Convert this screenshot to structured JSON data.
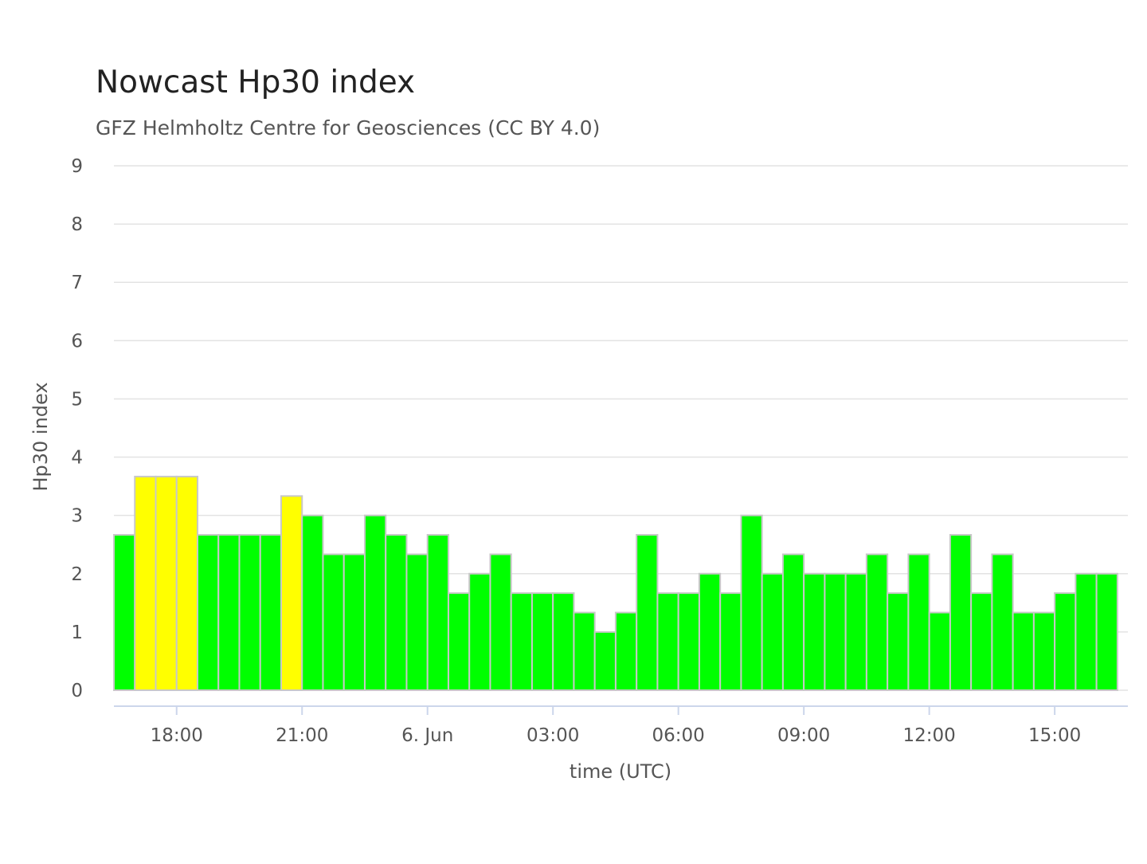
{
  "colors": {
    "low": "#00ff00",
    "elevated": "#ffff00",
    "grid": "#e3e3e3",
    "axis": "#ccd6eb",
    "title": "#222222",
    "text": "#555555"
  },
  "chart_data": {
    "type": "bar",
    "title": "Nowcast Hp30 index",
    "subtitle": "GFZ Helmholtz Centre for Geosciences (CC BY 4.0)",
    "xlabel": "time (UTC)",
    "ylabel": "Hp30 index",
    "ylim": [
      0,
      9
    ],
    "yticks": [
      "0",
      "1",
      "2",
      "3",
      "4",
      "5",
      "6",
      "7",
      "8",
      "9"
    ],
    "xlim": [
      "2025-06-05T16:30:00Z",
      "2025-06-06T16:45:00Z"
    ],
    "bar_interval_minutes": 30,
    "xticks": [
      {
        "t": "2025-06-05T18:00:00Z",
        "label": "18:00"
      },
      {
        "t": "2025-06-05T21:00:00Z",
        "label": "21:00"
      },
      {
        "t": "2025-06-06T00:00:00Z",
        "label": "6. Jun"
      },
      {
        "t": "2025-06-06T03:00:00Z",
        "label": "03:00"
      },
      {
        "t": "2025-06-06T06:00:00Z",
        "label": "06:00"
      },
      {
        "t": "2025-06-06T09:00:00Z",
        "label": "09:00"
      },
      {
        "t": "2025-06-06T12:00:00Z",
        "label": "12:00"
      },
      {
        "t": "2025-06-06T15:00:00Z",
        "label": "15:00"
      }
    ],
    "grid": true,
    "legend": "none",
    "x": [
      "2025-06-05T16:30:00Z",
      "2025-06-05T17:00:00Z",
      "2025-06-05T17:30:00Z",
      "2025-06-05T18:00:00Z",
      "2025-06-05T18:30:00Z",
      "2025-06-05T19:00:00Z",
      "2025-06-05T19:30:00Z",
      "2025-06-05T20:00:00Z",
      "2025-06-05T20:30:00Z",
      "2025-06-05T21:00:00Z",
      "2025-06-05T21:30:00Z",
      "2025-06-05T22:00:00Z",
      "2025-06-05T22:30:00Z",
      "2025-06-05T23:00:00Z",
      "2025-06-05T23:30:00Z",
      "2025-06-06T00:00:00Z",
      "2025-06-06T00:30:00Z",
      "2025-06-06T01:00:00Z",
      "2025-06-06T01:30:00Z",
      "2025-06-06T02:00:00Z",
      "2025-06-06T02:30:00Z",
      "2025-06-06T03:00:00Z",
      "2025-06-06T03:30:00Z",
      "2025-06-06T04:00:00Z",
      "2025-06-06T04:30:00Z",
      "2025-06-06T05:00:00Z",
      "2025-06-06T05:30:00Z",
      "2025-06-06T06:00:00Z",
      "2025-06-06T06:30:00Z",
      "2025-06-06T07:00:00Z",
      "2025-06-06T07:30:00Z",
      "2025-06-06T08:00:00Z",
      "2025-06-06T08:30:00Z",
      "2025-06-06T09:00:00Z",
      "2025-06-06T09:30:00Z",
      "2025-06-06T10:00:00Z",
      "2025-06-06T10:30:00Z",
      "2025-06-06T11:00:00Z",
      "2025-06-06T11:30:00Z",
      "2025-06-06T12:00:00Z",
      "2025-06-06T12:30:00Z",
      "2025-06-06T13:00:00Z",
      "2025-06-06T13:30:00Z",
      "2025-06-06T14:00:00Z",
      "2025-06-06T14:30:00Z",
      "2025-06-06T15:00:00Z",
      "2025-06-06T15:30:00Z",
      "2025-06-06T16:00:00Z"
    ],
    "values": [
      2.667,
      3.667,
      3.667,
      3.667,
      2.667,
      2.667,
      2.667,
      2.667,
      3.333,
      3.0,
      2.333,
      2.333,
      3.0,
      2.667,
      2.333,
      2.667,
      1.667,
      2.0,
      2.333,
      1.667,
      1.667,
      1.667,
      1.333,
      1.0,
      1.333,
      2.667,
      1.667,
      1.667,
      2.0,
      1.667,
      3.0,
      2.0,
      2.333,
      2.0,
      2.0,
      2.0,
      2.333,
      1.667,
      2.333,
      1.333,
      2.667,
      1.667,
      2.333,
      1.333,
      1.333,
      1.667,
      2.0,
      2.0
    ],
    "colors": [
      "#00ff00",
      "#ffff00",
      "#ffff00",
      "#ffff00",
      "#00ff00",
      "#00ff00",
      "#00ff00",
      "#00ff00",
      "#ffff00",
      "#00ff00",
      "#00ff00",
      "#00ff00",
      "#00ff00",
      "#00ff00",
      "#00ff00",
      "#00ff00",
      "#00ff00",
      "#00ff00",
      "#00ff00",
      "#00ff00",
      "#00ff00",
      "#00ff00",
      "#00ff00",
      "#00ff00",
      "#00ff00",
      "#00ff00",
      "#00ff00",
      "#00ff00",
      "#00ff00",
      "#00ff00",
      "#00ff00",
      "#00ff00",
      "#00ff00",
      "#00ff00",
      "#00ff00",
      "#00ff00",
      "#00ff00",
      "#00ff00",
      "#00ff00",
      "#00ff00",
      "#00ff00",
      "#00ff00",
      "#00ff00",
      "#00ff00",
      "#00ff00",
      "#00ff00",
      "#00ff00",
      "#00ff00"
    ]
  }
}
